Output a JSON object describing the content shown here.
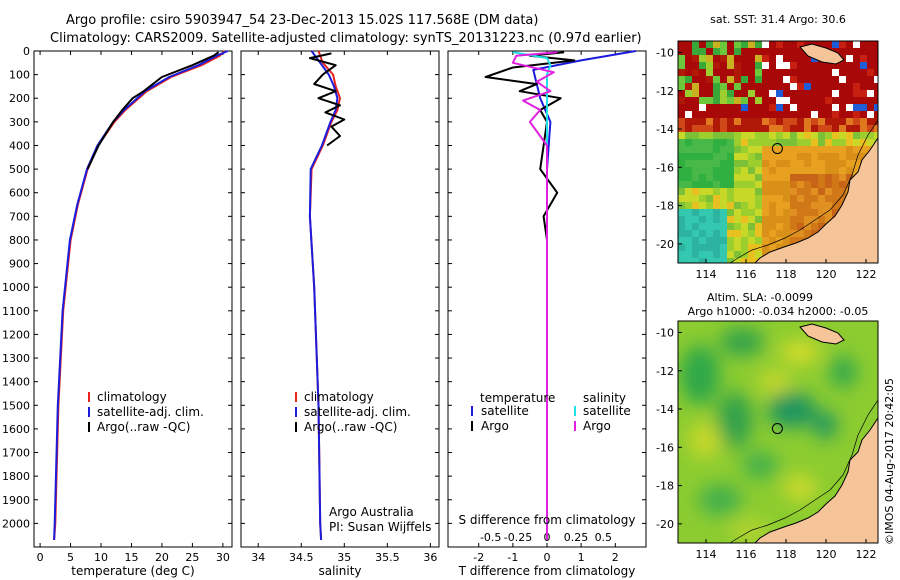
{
  "header": {
    "line1": "Argo profile: csiro 5903947_54 23-Dec-2013 15.02S 117.568E (DM data)",
    "line2": "Climatology: CARS2009. Satellite-adjusted climatology: synTS_20131223.nc (0.97d earlier)"
  },
  "colors": {
    "climatology": "#e8241c",
    "satellite": "#1c1cdc",
    "argo": "#000000",
    "argo_s": "#e020e0",
    "satellite_s": "#20e0e8"
  },
  "chart_data": [
    {
      "id": "temperature",
      "type": "line",
      "xlabel": "temperature (deg C)",
      "ylabel": "",
      "xlim": [
        -1,
        31.5
      ],
      "ylim": [
        2100,
        0
      ],
      "xticks": [
        "0",
        "5",
        "10",
        "15",
        "20",
        "25",
        "30"
      ],
      "xtick_values": [
        0,
        5,
        10,
        15,
        20,
        25,
        30
      ],
      "yticks": [
        "0",
        "100",
        "200",
        "300",
        "400",
        "500",
        "600",
        "700",
        "800",
        "900",
        "1000",
        "1100",
        "1200",
        "1300",
        "1400",
        "1500",
        "1600",
        "1700",
        "1800",
        "1900",
        "2000"
      ],
      "ytick_values": [
        0,
        100,
        200,
        300,
        400,
        500,
        600,
        700,
        800,
        900,
        1000,
        1100,
        1200,
        1300,
        1400,
        1500,
        1600,
        1700,
        1800,
        1900,
        2000
      ],
      "legend": [
        "climatology",
        "satellite-adj. clim.",
        "Argo(..raw -QC)"
      ],
      "series": [
        {
          "name": "climatology",
          "color_key": "climatology",
          "x": [
            30.3,
            29.5,
            26.5,
            21.5,
            17.5,
            14.0,
            12.2,
            9.5,
            7.8,
            6.2,
            5.0,
            3.8,
            3.0,
            2.5,
            2.3
          ],
          "y": [
            0,
            20,
            60,
            110,
            170,
            250,
            300,
            400,
            500,
            650,
            800,
            1100,
            1500,
            2000,
            2070
          ]
        },
        {
          "name": "satellite-adj. clim.",
          "color_key": "satellite",
          "x": [
            30.8,
            29.0,
            26.0,
            21.2,
            17.2,
            13.8,
            12.0,
            9.4,
            7.7,
            6.1,
            4.9,
            3.7,
            2.9,
            2.4,
            2.3
          ],
          "y": [
            0,
            20,
            60,
            110,
            170,
            250,
            300,
            400,
            500,
            650,
            800,
            1100,
            1500,
            2000,
            2070
          ]
        },
        {
          "name": "Argo(..raw -QC)",
          "color_key": "argo",
          "x": [
            29.3,
            28.5,
            25.0,
            20.0,
            17.0,
            15.2,
            13.5,
            12.0,
            9.6,
            7.8
          ],
          "y": [
            5,
            20,
            60,
            110,
            170,
            200,
            250,
            300,
            400,
            500
          ]
        }
      ]
    },
    {
      "id": "salinity",
      "type": "line",
      "xlabel": "salinity",
      "xlim": [
        33.8,
        36.1
      ],
      "ylim": [
        2100,
        0
      ],
      "xticks": [
        "34",
        "34.5",
        "35",
        "35.5",
        "36"
      ],
      "xtick_values": [
        34,
        34.5,
        35,
        35.5,
        36
      ],
      "legend": [
        "climatology",
        "satellite-adj. clim.",
        "Argo(..raw -QC)"
      ],
      "note": [
        "Argo Australia",
        "PI: Susan Wijffels"
      ],
      "series": [
        {
          "name": "climatology",
          "color_key": "climatology",
          "x": [
            34.7,
            34.75,
            34.87,
            34.9,
            34.95,
            34.92,
            34.85,
            34.75,
            34.62,
            34.6,
            34.65,
            34.7,
            34.72,
            34.73
          ],
          "y": [
            0,
            50,
            100,
            150,
            200,
            250,
            300,
            400,
            500,
            700,
            1000,
            1500,
            2000,
            2070
          ]
        },
        {
          "name": "satellite-adj. clim.",
          "color_key": "satellite",
          "x": [
            34.62,
            34.72,
            34.82,
            34.88,
            34.92,
            34.9,
            34.84,
            34.74,
            34.61,
            34.6,
            34.65,
            34.7,
            34.72,
            34.73
          ],
          "y": [
            0,
            50,
            100,
            150,
            200,
            250,
            300,
            400,
            500,
            700,
            1000,
            1500,
            2000,
            2070
          ]
        },
        {
          "name": "Argo(..raw -QC)",
          "color_key": "argo",
          "x": [
            34.85,
            34.6,
            34.9,
            34.75,
            34.65,
            34.9,
            34.7,
            34.95,
            34.78,
            35.0,
            34.85,
            34.95,
            34.8
          ],
          "y": [
            10,
            30,
            60,
            100,
            140,
            170,
            200,
            230,
            260,
            290,
            320,
            360,
            400
          ]
        }
      ]
    },
    {
      "id": "difference",
      "type": "line",
      "xlabel": "T difference from climatology",
      "xlabel2": "S difference from climatology",
      "xlim": [
        -2.9,
        2.9
      ],
      "ylim": [
        2100,
        0
      ],
      "xticks": [
        "-2",
        "-1",
        "0",
        "1",
        "2"
      ],
      "xtick_values": [
        -2,
        -1,
        0,
        1,
        2
      ],
      "sticks": [
        "-0.5",
        "-0.25",
        "0",
        "0.25",
        "0.5"
      ],
      "stick_values": [
        -1.65,
        -0.85,
        0,
        0.85,
        1.65
      ],
      "legend_headers": [
        "temperature",
        "salinity"
      ],
      "legend_left": [
        "satellite",
        "Argo"
      ],
      "legend_right": [
        "satellite",
        "Argo"
      ],
      "series": [
        {
          "name": "T satellite",
          "color_key": "satellite",
          "x": [
            2.6,
            1.0,
            -0.4,
            -0.2,
            0.1,
            0.0,
            0.0
          ],
          "y": [
            0,
            40,
            80,
            200,
            300,
            500,
            2070
          ]
        },
        {
          "name": "T Argo",
          "color_key": "argo",
          "x": [
            0.5,
            -0.5,
            0.8,
            -1.0,
            -1.8,
            -0.3,
            -0.8,
            0.4,
            -0.2,
            0.0,
            -0.2,
            0.3,
            -0.1,
            0.0,
            0.0
          ],
          "y": [
            5,
            20,
            40,
            70,
            110,
            140,
            170,
            200,
            250,
            300,
            500,
            600,
            700,
            800,
            2070
          ]
        },
        {
          "name": "S satellite",
          "color_key": "satellite_s",
          "x": [
            -1.0,
            0.0,
            0.1,
            0.0,
            0.0,
            0.0
          ],
          "y": [
            5,
            30,
            60,
            100,
            300,
            2070
          ]
        },
        {
          "name": "S Argo",
          "color_key": "argo_s",
          "x": [
            0.3,
            -0.9,
            -1.0,
            0.2,
            -0.3,
            0.1,
            -0.7,
            -0.2,
            -0.5,
            0.0,
            0.0
          ],
          "y": [
            5,
            20,
            50,
            90,
            130,
            170,
            210,
            250,
            300,
            400,
            2070
          ]
        }
      ]
    }
  ],
  "maps": {
    "sst": {
      "title": "sat. SST: 31.4  Argo: 30.6",
      "yticks": [
        "-10",
        "-12",
        "-14",
        "-16",
        "-18",
        "-20"
      ],
      "xticks": [
        "114",
        "116",
        "118",
        "120",
        "122"
      ],
      "lon_range": [
        112.6,
        122.6
      ],
      "lat_range": [
        -21,
        -9.4
      ],
      "point": {
        "lon": 117.57,
        "lat": -15.02
      }
    },
    "sla": {
      "title1": "Altim. SLA: -0.0099",
      "title2": "Argo h1000: -0.034  h2000: -0.05",
      "yticks": [
        "-10",
        "-12",
        "-14",
        "-16",
        "-18",
        "-20"
      ],
      "xticks": [
        "114",
        "116",
        "118",
        "120",
        "122"
      ],
      "lon_range": [
        112.6,
        122.6
      ],
      "lat_range": [
        -21,
        -9.4
      ],
      "point": {
        "lon": 117.57,
        "lat": -15.02
      }
    }
  },
  "stamp": "©IMOS 04-Aug-2017 20:42:05"
}
